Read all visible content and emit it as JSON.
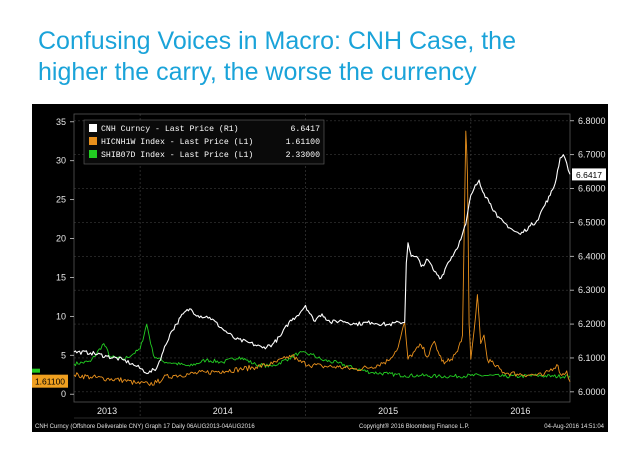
{
  "slide": {
    "title_line1": "Confusing Voices in Macro: CNH Case, the",
    "title_line2": "higher the carry, the worse the currency"
  },
  "footer": {
    "left": "CNH Curncy (Offshore Deliverable CNY) Graph 17  Daily 06AUG2013-04AUG2016",
    "center": "Copyright® 2016 Bloomberg Finance L.P.",
    "right": "04-Aug-2016 14:51:04"
  },
  "colors": {
    "background": "#000000",
    "cnh": "#ffffff",
    "hicnh": "#e8901c",
    "shibor": "#22cc22",
    "grid": "#3a3a3a",
    "tag_orange": "#f0a020",
    "tag_white": "#ffffff"
  },
  "chart_data": {
    "type": "line",
    "x_tick_labels": [
      "2013",
      "2014",
      "2015",
      "2016"
    ],
    "left_axis": {
      "ticks": [
        "35",
        "30",
        "25",
        "20",
        "15",
        "10",
        "5",
        "0"
      ],
      "range": [
        -1,
        36
      ]
    },
    "right_axis": {
      "ticks": [
        "6.8000",
        "6.7000",
        "6.6000",
        "6.5000",
        "6.4000",
        "6.3000",
        "6.2000",
        "6.1000",
        "6.0000"
      ],
      "range": [
        5.97,
        6.82
      ]
    },
    "legend": [
      {
        "label": "CNH Curncy - Last Price (R1)",
        "value": "6.6417",
        "color": "#ffffff"
      },
      {
        "label": "HICNH1W Index - Last Price (L1)",
        "value": "1.61100",
        "color": "#e8901c"
      },
      {
        "label": "SHIB07D Index - Last Price (L1)",
        "value": "2.33000",
        "color": "#22cc22"
      }
    ],
    "last_value_tags": {
      "cnh": "6.6417",
      "hicnh": "1.61100"
    },
    "series": [
      {
        "name": "CNH Curncy - Last Price (R1)",
        "axis": "right",
        "points": [
          [
            2013.6,
            6.118
          ],
          [
            2013.7,
            6.115
          ],
          [
            2013.8,
            6.105
          ],
          [
            2013.9,
            6.094
          ],
          [
            2013.98,
            6.075
          ],
          [
            2014.05,
            6.055
          ],
          [
            2014.1,
            6.07
          ],
          [
            2014.14,
            6.12
          ],
          [
            2014.18,
            6.17
          ],
          [
            2014.22,
            6.2
          ],
          [
            2014.26,
            6.23
          ],
          [
            2014.3,
            6.245
          ],
          [
            2014.35,
            6.225
          ],
          [
            2014.42,
            6.22
          ],
          [
            2014.5,
            6.185
          ],
          [
            2014.58,
            6.155
          ],
          [
            2014.66,
            6.145
          ],
          [
            2014.74,
            6.13
          ],
          [
            2014.8,
            6.14
          ],
          [
            2014.85,
            6.165
          ],
          [
            2014.9,
            6.205
          ],
          [
            2014.95,
            6.225
          ],
          [
            2015.0,
            6.255
          ],
          [
            2015.05,
            6.21
          ],
          [
            2015.1,
            6.23
          ],
          [
            2015.15,
            6.205
          ],
          [
            2015.22,
            6.21
          ],
          [
            2015.3,
            6.2
          ],
          [
            2015.4,
            6.205
          ],
          [
            2015.5,
            6.198
          ],
          [
            2015.57,
            6.205
          ],
          [
            2015.6,
            6.205
          ],
          [
            2015.61,
            6.38
          ],
          [
            2015.62,
            6.44
          ],
          [
            2015.64,
            6.4
          ],
          [
            2015.68,
            6.395
          ],
          [
            2015.7,
            6.37
          ],
          [
            2015.74,
            6.39
          ],
          [
            2015.78,
            6.355
          ],
          [
            2015.82,
            6.335
          ],
          [
            2015.86,
            6.38
          ],
          [
            2015.9,
            6.41
          ],
          [
            2015.94,
            6.45
          ],
          [
            2015.97,
            6.495
          ],
          [
            2016.0,
            6.58
          ],
          [
            2016.02,
            6.6
          ],
          [
            2016.05,
            6.625
          ],
          [
            2016.08,
            6.585
          ],
          [
            2016.12,
            6.555
          ],
          [
            2016.16,
            6.515
          ],
          [
            2016.2,
            6.5
          ],
          [
            2016.26,
            6.475
          ],
          [
            2016.3,
            6.465
          ],
          [
            2016.36,
            6.49
          ],
          [
            2016.4,
            6.505
          ],
          [
            2016.44,
            6.545
          ],
          [
            2016.48,
            6.58
          ],
          [
            2016.51,
            6.615
          ],
          [
            2016.54,
            6.69
          ],
          [
            2016.56,
            6.7
          ],
          [
            2016.58,
            6.675
          ],
          [
            2016.6,
            6.642
          ]
        ]
      },
      {
        "name": "HICNH1W Index - Last Price (L1)",
        "axis": "left",
        "points": [
          [
            2013.6,
            2.5
          ],
          [
            2013.7,
            2.2
          ],
          [
            2013.8,
            2.0
          ],
          [
            2013.9,
            1.8
          ],
          [
            2013.98,
            1.4
          ],
          [
            2014.05,
            1.3
          ],
          [
            2014.1,
            1.5
          ],
          [
            2014.14,
            2.1
          ],
          [
            2014.2,
            2.4
          ],
          [
            2014.3,
            2.6
          ],
          [
            2014.4,
            2.8
          ],
          [
            2014.5,
            3.0
          ],
          [
            2014.6,
            3.2
          ],
          [
            2014.7,
            3.5
          ],
          [
            2014.8,
            3.9
          ],
          [
            2014.88,
            4.6
          ],
          [
            2014.92,
            5.0
          ],
          [
            2014.96,
            4.2
          ],
          [
            2015.02,
            3.8
          ],
          [
            2015.1,
            3.6
          ],
          [
            2015.2,
            3.5
          ],
          [
            2015.3,
            3.2
          ],
          [
            2015.4,
            3.5
          ],
          [
            2015.5,
            4.3
          ],
          [
            2015.56,
            6.0
          ],
          [
            2015.6,
            9.2
          ],
          [
            2015.62,
            4.5
          ],
          [
            2015.66,
            5.5
          ],
          [
            2015.7,
            6.3
          ],
          [
            2015.74,
            4.8
          ],
          [
            2015.78,
            6.8
          ],
          [
            2015.81,
            5.0
          ],
          [
            2015.84,
            3.9
          ],
          [
            2015.88,
            4.5
          ],
          [
            2015.92,
            5.5
          ],
          [
            2015.95,
            7.6
          ],
          [
            2015.97,
            33.8
          ],
          [
            2015.98,
            28.0
          ],
          [
            2015.99,
            9.0
          ],
          [
            2016.0,
            4.5
          ],
          [
            2016.02,
            8.2
          ],
          [
            2016.04,
            12.8
          ],
          [
            2016.06,
            6.5
          ],
          [
            2016.08,
            7.6
          ],
          [
            2016.1,
            4.5
          ],
          [
            2016.14,
            3.8
          ],
          [
            2016.2,
            2.8
          ],
          [
            2016.28,
            2.6
          ],
          [
            2016.36,
            2.5
          ],
          [
            2016.44,
            2.4
          ],
          [
            2016.52,
            3.8
          ],
          [
            2016.55,
            2.4
          ],
          [
            2016.58,
            3.0
          ],
          [
            2016.6,
            1.6
          ]
        ]
      },
      {
        "name": "SHIB07D Index - Last Price (L1)",
        "axis": "left",
        "points": [
          [
            2013.6,
            3.9
          ],
          [
            2013.7,
            4.2
          ],
          [
            2013.78,
            6.5
          ],
          [
            2013.82,
            4.8
          ],
          [
            2013.9,
            4.5
          ],
          [
            2013.96,
            5.2
          ],
          [
            2014.0,
            5.8
          ],
          [
            2014.04,
            9.0
          ],
          [
            2014.08,
            5.0
          ],
          [
            2014.14,
            4.2
          ],
          [
            2014.2,
            4.0
          ],
          [
            2014.3,
            3.6
          ],
          [
            2014.4,
            4.4
          ],
          [
            2014.5,
            4.1
          ],
          [
            2014.6,
            4.8
          ],
          [
            2014.7,
            3.8
          ],
          [
            2014.8,
            3.6
          ],
          [
            2014.9,
            4.6
          ],
          [
            2014.96,
            5.3
          ],
          [
            2015.04,
            5.1
          ],
          [
            2015.1,
            4.4
          ],
          [
            2015.2,
            4.0
          ],
          [
            2015.3,
            3.3
          ],
          [
            2015.4,
            2.8
          ],
          [
            2015.5,
            2.6
          ],
          [
            2015.6,
            2.4
          ],
          [
            2015.7,
            2.4
          ],
          [
            2015.8,
            2.3
          ],
          [
            2015.9,
            2.3
          ],
          [
            2016.0,
            2.4
          ],
          [
            2016.1,
            2.4
          ],
          [
            2016.2,
            2.3
          ],
          [
            2016.3,
            2.3
          ],
          [
            2016.4,
            2.4
          ],
          [
            2016.5,
            2.3
          ],
          [
            2016.6,
            2.33
          ]
        ]
      }
    ],
    "grid": true,
    "legend_position": "top-left"
  }
}
